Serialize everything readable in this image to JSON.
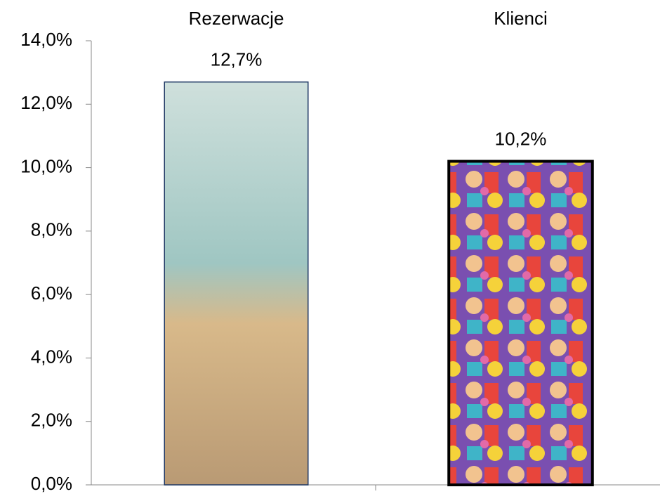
{
  "chart_data": {
    "type": "bar",
    "categories": [
      "Rezerwacje",
      "Klienci"
    ],
    "values": [
      12.7,
      10.2
    ],
    "value_labels": [
      "12,7%",
      "10,2%"
    ],
    "edge_colors": [
      "#1f3864",
      "#000000"
    ],
    "ylim": [
      0,
      14
    ],
    "yticks": [
      {
        "value": 0,
        "label": "0,0%"
      },
      {
        "value": 2,
        "label": "2,0%"
      },
      {
        "value": 4,
        "label": "4,0%"
      },
      {
        "value": 6,
        "label": "6,0%"
      },
      {
        "value": 8,
        "label": "8,0%"
      },
      {
        "value": 10,
        "label": "10,0%"
      },
      {
        "value": 12,
        "label": "12,0%"
      },
      {
        "value": 14,
        "label": "14,0%"
      }
    ],
    "grid": false
  }
}
